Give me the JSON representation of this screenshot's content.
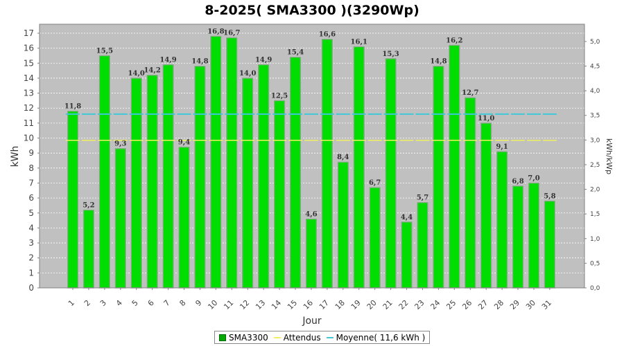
{
  "chart_data": {
    "type": "bar",
    "title": "8-2025( SMA3300 )(3290Wp)",
    "xlabel": "Jour",
    "ylabel": "kWh",
    "y2label": "kWh/kWp",
    "categories": [
      "1",
      "2",
      "3",
      "4",
      "5",
      "6",
      "7",
      "8",
      "9",
      "10",
      "11",
      "12",
      "13",
      "14",
      "15",
      "16",
      "17",
      "18",
      "19",
      "20",
      "21",
      "22",
      "23",
      "24",
      "25",
      "26",
      "27",
      "28",
      "29",
      "30",
      "31"
    ],
    "series": [
      {
        "name": "SMA3300",
        "type": "bar",
        "color": "#00dd00",
        "values": [
          11.8,
          5.2,
          15.5,
          9.3,
          14.0,
          14.2,
          14.9,
          9.4,
          14.8,
          16.8,
          16.7,
          14.0,
          14.9,
          12.5,
          15.4,
          4.6,
          16.6,
          8.4,
          16.1,
          6.7,
          15.3,
          4.4,
          5.7,
          14.8,
          16.2,
          12.7,
          11.0,
          9.1,
          6.8,
          7.0,
          5.8
        ],
        "labels": [
          "11,8",
          "5,2",
          "15,5",
          "9,3",
          "14,0",
          "14,2",
          "14,9",
          "9,4",
          "14,8",
          "16,8",
          "16,7",
          "14,0",
          "14,9",
          "12,5",
          "15,4",
          "4,6",
          "16,6",
          "8,4",
          "16,1",
          "6,7",
          "15,3",
          "4,4",
          "5,7",
          "14,8",
          "16,2",
          "12,7",
          "11,0",
          "9,1",
          "6,8",
          "7,0",
          "5,8"
        ]
      },
      {
        "name": "Attendus",
        "type": "line",
        "style": "dashed",
        "color": "#f0f060",
        "value": 9.85
      },
      {
        "name": "Moyenne( 11,6 kWh )",
        "type": "line",
        "style": "dashed",
        "color": "#40c8d8",
        "value": 11.6
      }
    ],
    "ylim": [
      0,
      17.6
    ],
    "yticks": [
      0,
      1,
      2,
      3,
      4,
      5,
      6,
      7,
      8,
      9,
      10,
      11,
      12,
      13,
      14,
      15,
      16,
      17
    ],
    "y2lim": [
      0,
      5.35
    ],
    "y2ticks": [
      "0,0",
      "0,5",
      "1,0",
      "1,5",
      "2,0",
      "2,5",
      "3,0",
      "3,5",
      "4,0",
      "4,5",
      "5,0"
    ],
    "grid": true,
    "legend_position": "bottom"
  },
  "colors": {
    "plot_background": "#c0c0c0",
    "grid": "#ffffff",
    "bar_fill": "#00dd00",
    "bar_edge": "#8aa88a"
  }
}
